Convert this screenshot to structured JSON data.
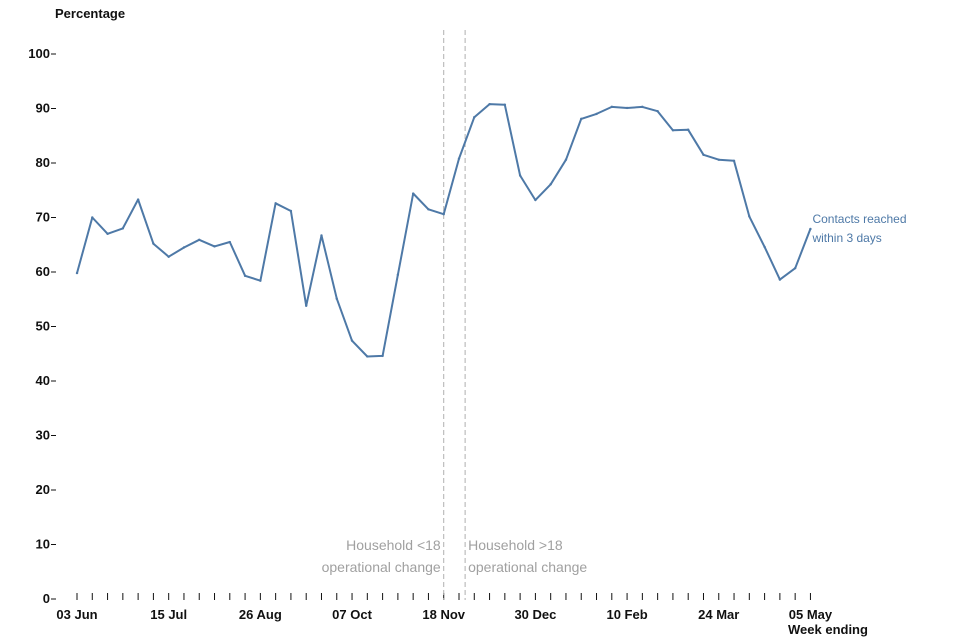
{
  "chart_data": {
    "type": "line",
    "ylabel": "Percentage",
    "xlabel": "Week ending",
    "ylim": [
      0,
      100
    ],
    "yticks": [
      0,
      10,
      20,
      30,
      40,
      50,
      60,
      70,
      80,
      90,
      100
    ],
    "x_tick_labels": [
      "03 Jun",
      "15 Jul",
      "26 Aug",
      "07 Oct",
      "18 Nov",
      "30 Dec",
      "10 Feb",
      "24 Mar",
      "05 May"
    ],
    "grid": false,
    "series": [
      {
        "name": "Contacts reached within 3 days",
        "label_lines": [
          "Contacts reached",
          "within 3 days"
        ],
        "color": "#4e79a7",
        "values": [
          59.8,
          70.0,
          67.0,
          68.0,
          73.3,
          65.2,
          62.8,
          64.5,
          65.9,
          64.7,
          65.5,
          59.3,
          58.4,
          72.6,
          71.2,
          53.8,
          66.7,
          55.1,
          47.4,
          44.5,
          44.6,
          59.5,
          74.4,
          71.5,
          70.6,
          80.8,
          88.4,
          90.8,
          90.7,
          77.7,
          73.2,
          76.1,
          80.6,
          88.1,
          89.0,
          90.3,
          90.1,
          90.3,
          89.5,
          86.0,
          86.1,
          81.5,
          80.6,
          80.4,
          70.2,
          64.6,
          58.6,
          60.7,
          67.9
        ]
      }
    ],
    "annotations": [
      {
        "week_index": 24,
        "lines": [
          "Household <18",
          "operational change"
        ],
        "align": "left-of-line"
      },
      {
        "week_index": 25.4,
        "lines": [
          "Household >18",
          "operational change"
        ],
        "align": "right-of-line"
      }
    ],
    "colors": {
      "line": "#4e79a7",
      "annotation": "#a0a0a0",
      "axis": "#111111",
      "marker_line": "#b0b0b0"
    }
  }
}
